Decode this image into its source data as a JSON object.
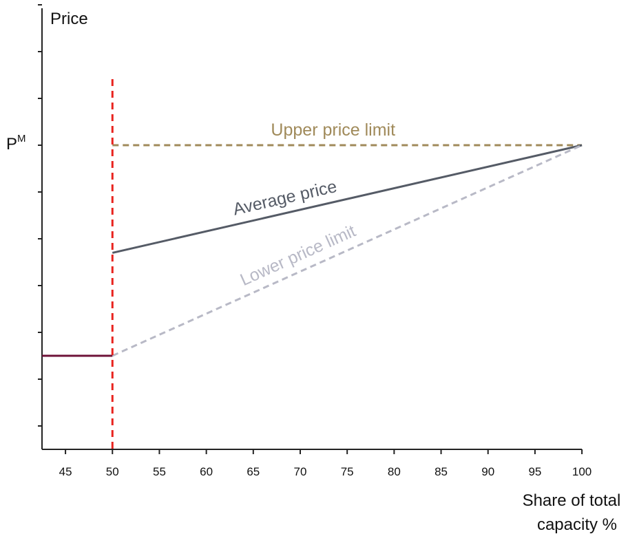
{
  "chart_data": {
    "type": "line",
    "ylabel": "Price",
    "xlabel_lines": [
      "Share of total",
      "capacity %"
    ],
    "y_marker": {
      "label": "P",
      "superscript": "M",
      "value": 6.5
    },
    "xlim": [
      42.5,
      100
    ],
    "ylim": [
      0,
      9.5
    ],
    "x_ticks": [
      45,
      50,
      55,
      60,
      65,
      70,
      75,
      80,
      85,
      90,
      95,
      100
    ],
    "y_ticks": [
      0.5,
      1.5,
      2.5,
      3.5,
      4.5,
      5.5,
      6.5,
      7.5,
      8.5,
      9.5
    ],
    "series": [
      {
        "name": "Upper price limit",
        "style": "dashed",
        "color": "#a08a5a",
        "x": [
          50,
          100
        ],
        "y": [
          6.5,
          6.5
        ]
      },
      {
        "name": "Average price",
        "style": "solid",
        "color": "#555b66",
        "x": [
          50,
          100
        ],
        "y": [
          4.2,
          6.5
        ]
      },
      {
        "name": "Lower price limit",
        "style": "dashed",
        "color": "#b8b9c6",
        "x": [
          50,
          100
        ],
        "y": [
          2.0,
          6.5
        ]
      },
      {
        "name": "",
        "style": "solid",
        "color": "#6e1238",
        "x": [
          42.5,
          50
        ],
        "y": [
          2.0,
          2.0
        ]
      }
    ],
    "vline": {
      "x": 50,
      "style": "dashed",
      "color": "#e8231e"
    },
    "annotations": [
      {
        "text": "Upper price limit",
        "series": 0,
        "color": "#a08a5a"
      },
      {
        "text": "Average price",
        "series": 1,
        "color": "#555b66"
      },
      {
        "text": "Lower price limit",
        "series": 2,
        "color": "#b8b9c6"
      }
    ],
    "grid": false
  }
}
